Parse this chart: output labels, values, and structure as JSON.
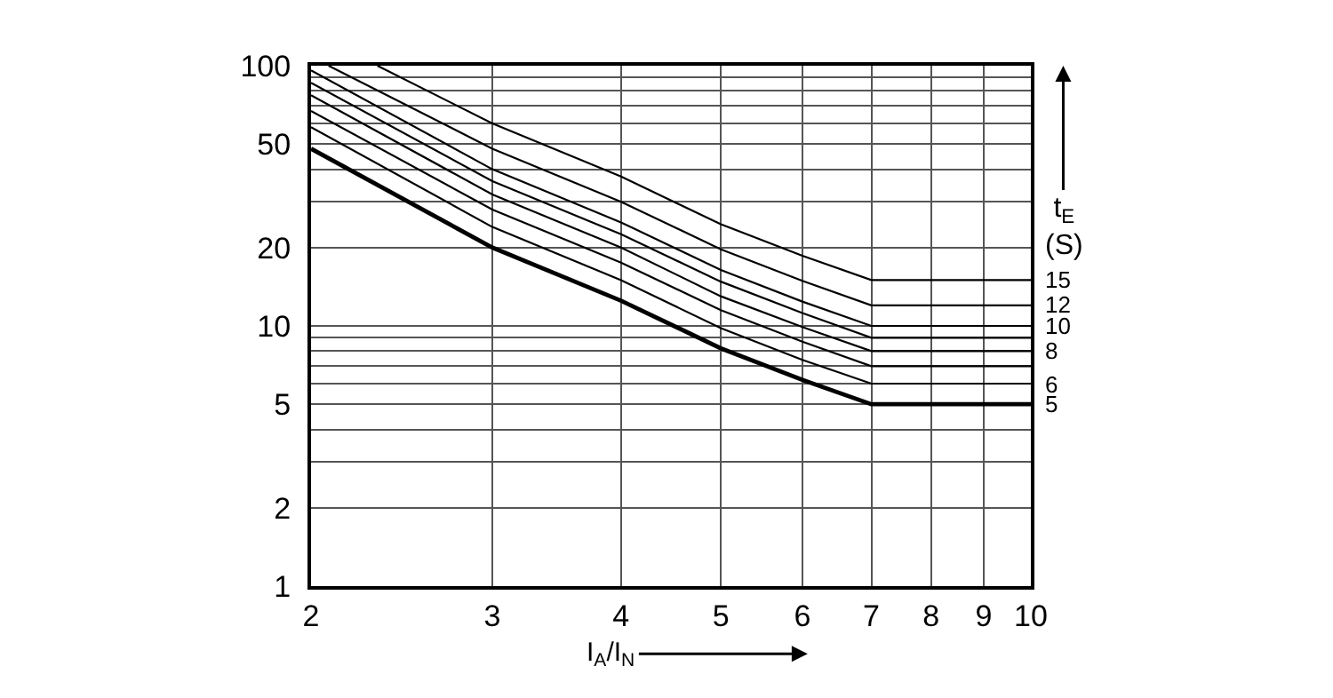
{
  "chart_data": {
    "type": "line",
    "xlabel": "I$_{A}$/I$_{N}$",
    "ylabel": "t$_{E}$ (S)",
    "log": "xy",
    "grid": true,
    "legend": false,
    "marker": "none",
    "line_style": "solid",
    "xlim": [
      2,
      10
    ],
    "xticks": [
      2,
      3,
      4,
      5,
      6,
      7,
      8,
      9,
      10
    ],
    "ylim": [
      1,
      100
    ],
    "yticks": [
      1,
      2,
      {
        "value": 3,
        "label": null
      },
      {
        "value": 4,
        "label": null
      },
      5,
      {
        "value": 6,
        "label": null
      },
      {
        "value": 7,
        "label": null
      },
      {
        "value": 8,
        "label": null
      },
      {
        "value": 9,
        "label": null
      },
      10,
      20,
      {
        "value": 30,
        "label": null
      },
      {
        "value": 40,
        "label": null
      },
      50,
      {
        "value": 60,
        "label": null
      },
      {
        "value": 70,
        "label": null
      },
      {
        "value": 80,
        "label": null
      },
      {
        "value": 90,
        "label": null
      },
      100
    ],
    "series": [
      {
        "name": "5",
        "color": "#000000",
        "x": [
          2,
          3,
          4,
          5,
          6,
          7,
          10
        ],
        "values": [
          48,
          20,
          12.5,
          8.2,
          6.2,
          5,
          5
        ]
      },
      {
        "name": "6",
        "color": "#000000",
        "x": [
          2,
          3,
          4,
          5,
          6,
          7,
          10
        ],
        "values": [
          58,
          24,
          15,
          9.8,
          7.4,
          6,
          6
        ]
      },
      {
        "color": "#000000",
        "x": [
          2,
          3,
          4,
          5,
          6,
          7,
          10
        ],
        "values": [
          67,
          28,
          17.5,
          11.5,
          8.7,
          7,
          7
        ]
      },
      {
        "name": "8",
        "color": "#000000",
        "x": [
          2,
          3,
          4,
          5,
          6,
          7,
          10
        ],
        "values": [
          77,
          32,
          20,
          13,
          9.9,
          8,
          8
        ]
      },
      {
        "color": "#000000",
        "x": [
          2,
          3,
          4,
          5,
          6,
          7,
          10
        ],
        "values": [
          86,
          36,
          22.5,
          14.8,
          11.2,
          9,
          9
        ]
      },
      {
        "name": "10",
        "color": "#000000",
        "x": [
          2,
          3,
          4,
          5,
          6,
          7,
          10
        ],
        "values": [
          96,
          40,
          25,
          16.4,
          12.4,
          10,
          10
        ]
      },
      {
        "name": "12",
        "color": "#000000",
        "x": [
          2.08,
          3,
          4,
          5,
          6,
          7,
          10
        ],
        "values": [
          100,
          48,
          30,
          19.7,
          14.9,
          12,
          12
        ]
      },
      {
        "name": "15",
        "color": "#000000",
        "x": [
          2.32,
          3,
          4,
          5,
          6,
          7,
          10
        ],
        "values": [
          100,
          60,
          37.5,
          24.6,
          18.6,
          15,
          15
        ]
      }
    ]
  }
}
